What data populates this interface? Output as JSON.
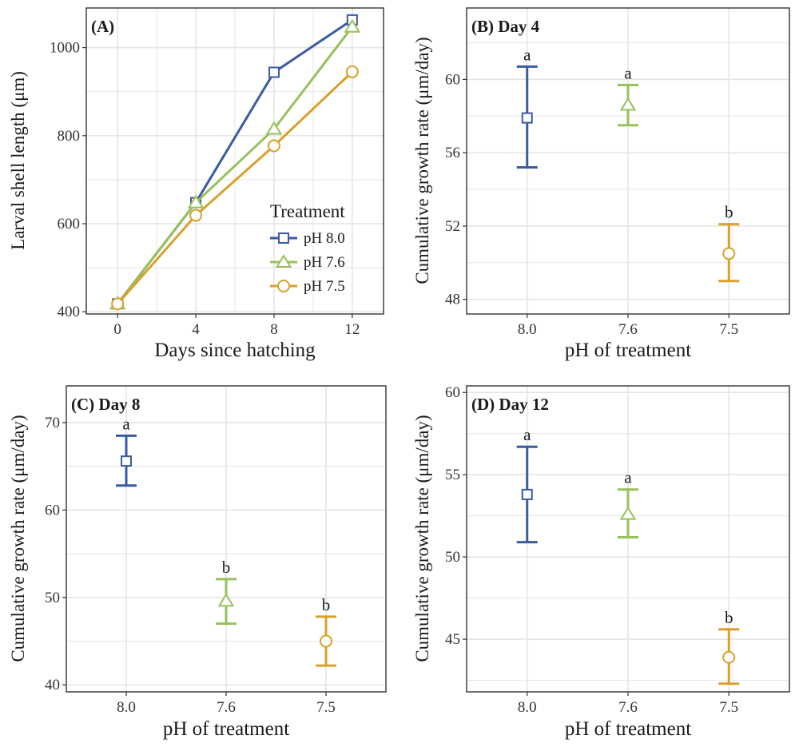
{
  "colors": {
    "ph80": "#3A5BA0",
    "ph76": "#97C15C",
    "ph75": "#D9A02B",
    "grid": "#E5E5E5",
    "border": "#333333"
  },
  "chart_data": [
    {
      "type": "line",
      "title": "(A)",
      "xlabel": "Days since hatching",
      "ylabel": "Larval shell length (μm)",
      "xlim": [
        -1.6,
        13.6
      ],
      "ylim": [
        395,
        1090
      ],
      "xticks": [
        0,
        4,
        8,
        12
      ],
      "xtick_labels": [
        "0",
        "4",
        "8",
        "12"
      ],
      "yticks": [
        400,
        600,
        800,
        1000
      ],
      "ytick_labels": [
        "400",
        "600",
        "800",
        "1000"
      ],
      "legend": {
        "title": "Treatment",
        "position": "bottom-right"
      },
      "series": [
        {
          "name": "pH 8.0",
          "color_key": "ph80",
          "marker": "square",
          "x": [
            0,
            4,
            8,
            12
          ],
          "y": [
            418,
            648,
            944,
            1063
          ],
          "err": [
            0,
            0,
            0,
            0
          ]
        },
        {
          "name": "pH 7.6",
          "color_key": "ph76",
          "marker": "triangle",
          "x": [
            0,
            4,
            8,
            12
          ],
          "y": [
            418,
            648,
            815,
            1047
          ],
          "err": [
            0,
            0,
            0,
            0
          ]
        },
        {
          "name": "pH 7.5",
          "color_key": "ph75",
          "marker": "circle",
          "x": [
            0,
            4,
            8,
            12
          ],
          "y": [
            418,
            619,
            777,
            945
          ],
          "err": [
            0,
            0,
            0,
            0
          ]
        }
      ]
    },
    {
      "type": "scatter",
      "title": "(B) Day 4",
      "xlabel": "pH of treatment",
      "ylabel": "Cumulative growth rate (μm/day)",
      "categories": [
        "8.0",
        "7.6",
        "7.5"
      ],
      "ylim": [
        47.2,
        63.9
      ],
      "yticks": [
        48,
        52,
        56,
        60
      ],
      "ytick_labels": [
        "48",
        "52",
        "56",
        "60"
      ],
      "points": [
        {
          "category": "8.0",
          "mean": 57.9,
          "low": 55.2,
          "high": 60.7,
          "letter": "a",
          "color_key": "ph80",
          "marker": "square"
        },
        {
          "category": "7.6",
          "mean": 58.6,
          "low": 57.5,
          "high": 59.7,
          "letter": "a",
          "color_key": "ph76",
          "marker": "triangle"
        },
        {
          "category": "7.5",
          "mean": 50.5,
          "low": 49.0,
          "high": 52.1,
          "letter": "b",
          "color_key": "ph75",
          "marker": "circle"
        }
      ]
    },
    {
      "type": "scatter",
      "title": "(C) Day 8",
      "xlabel": "pH of treatment",
      "ylabel": "Cumulative growth rate (μm/day)",
      "categories": [
        "8.0",
        "7.6",
        "7.5"
      ],
      "ylim": [
        39.2,
        74.2
      ],
      "yticks": [
        40,
        50,
        60,
        70
      ],
      "ytick_labels": [
        "40",
        "50",
        "60",
        "70"
      ],
      "points": [
        {
          "category": "8.0",
          "mean": 65.6,
          "low": 62.8,
          "high": 68.5,
          "letter": "a",
          "color_key": "ph80",
          "marker": "square"
        },
        {
          "category": "7.6",
          "mean": 49.6,
          "low": 47.0,
          "high": 52.1,
          "letter": "b",
          "color_key": "ph76",
          "marker": "triangle"
        },
        {
          "category": "7.5",
          "mean": 45.0,
          "low": 42.2,
          "high": 47.8,
          "letter": "b",
          "color_key": "ph75",
          "marker": "circle"
        }
      ]
    },
    {
      "type": "scatter",
      "title": "(D) Day 12",
      "xlabel": "pH of treatment",
      "ylabel": "Cumulative growth rate (μm/day)",
      "categories": [
        "8.0",
        "7.6",
        "7.5"
      ],
      "ylim": [
        41.8,
        60.4
      ],
      "yticks": [
        45,
        50,
        55,
        60
      ],
      "ytick_labels": [
        "45",
        "50",
        "55",
        "60"
      ],
      "points": [
        {
          "category": "8.0",
          "mean": 53.8,
          "low": 50.9,
          "high": 56.7,
          "letter": "a",
          "color_key": "ph80",
          "marker": "square"
        },
        {
          "category": "7.6",
          "mean": 52.6,
          "low": 51.2,
          "high": 54.1,
          "letter": "a",
          "color_key": "ph76",
          "marker": "triangle"
        },
        {
          "category": "7.5",
          "mean": 43.9,
          "low": 42.3,
          "high": 45.6,
          "letter": "b",
          "color_key": "ph75",
          "marker": "circle"
        }
      ]
    }
  ]
}
